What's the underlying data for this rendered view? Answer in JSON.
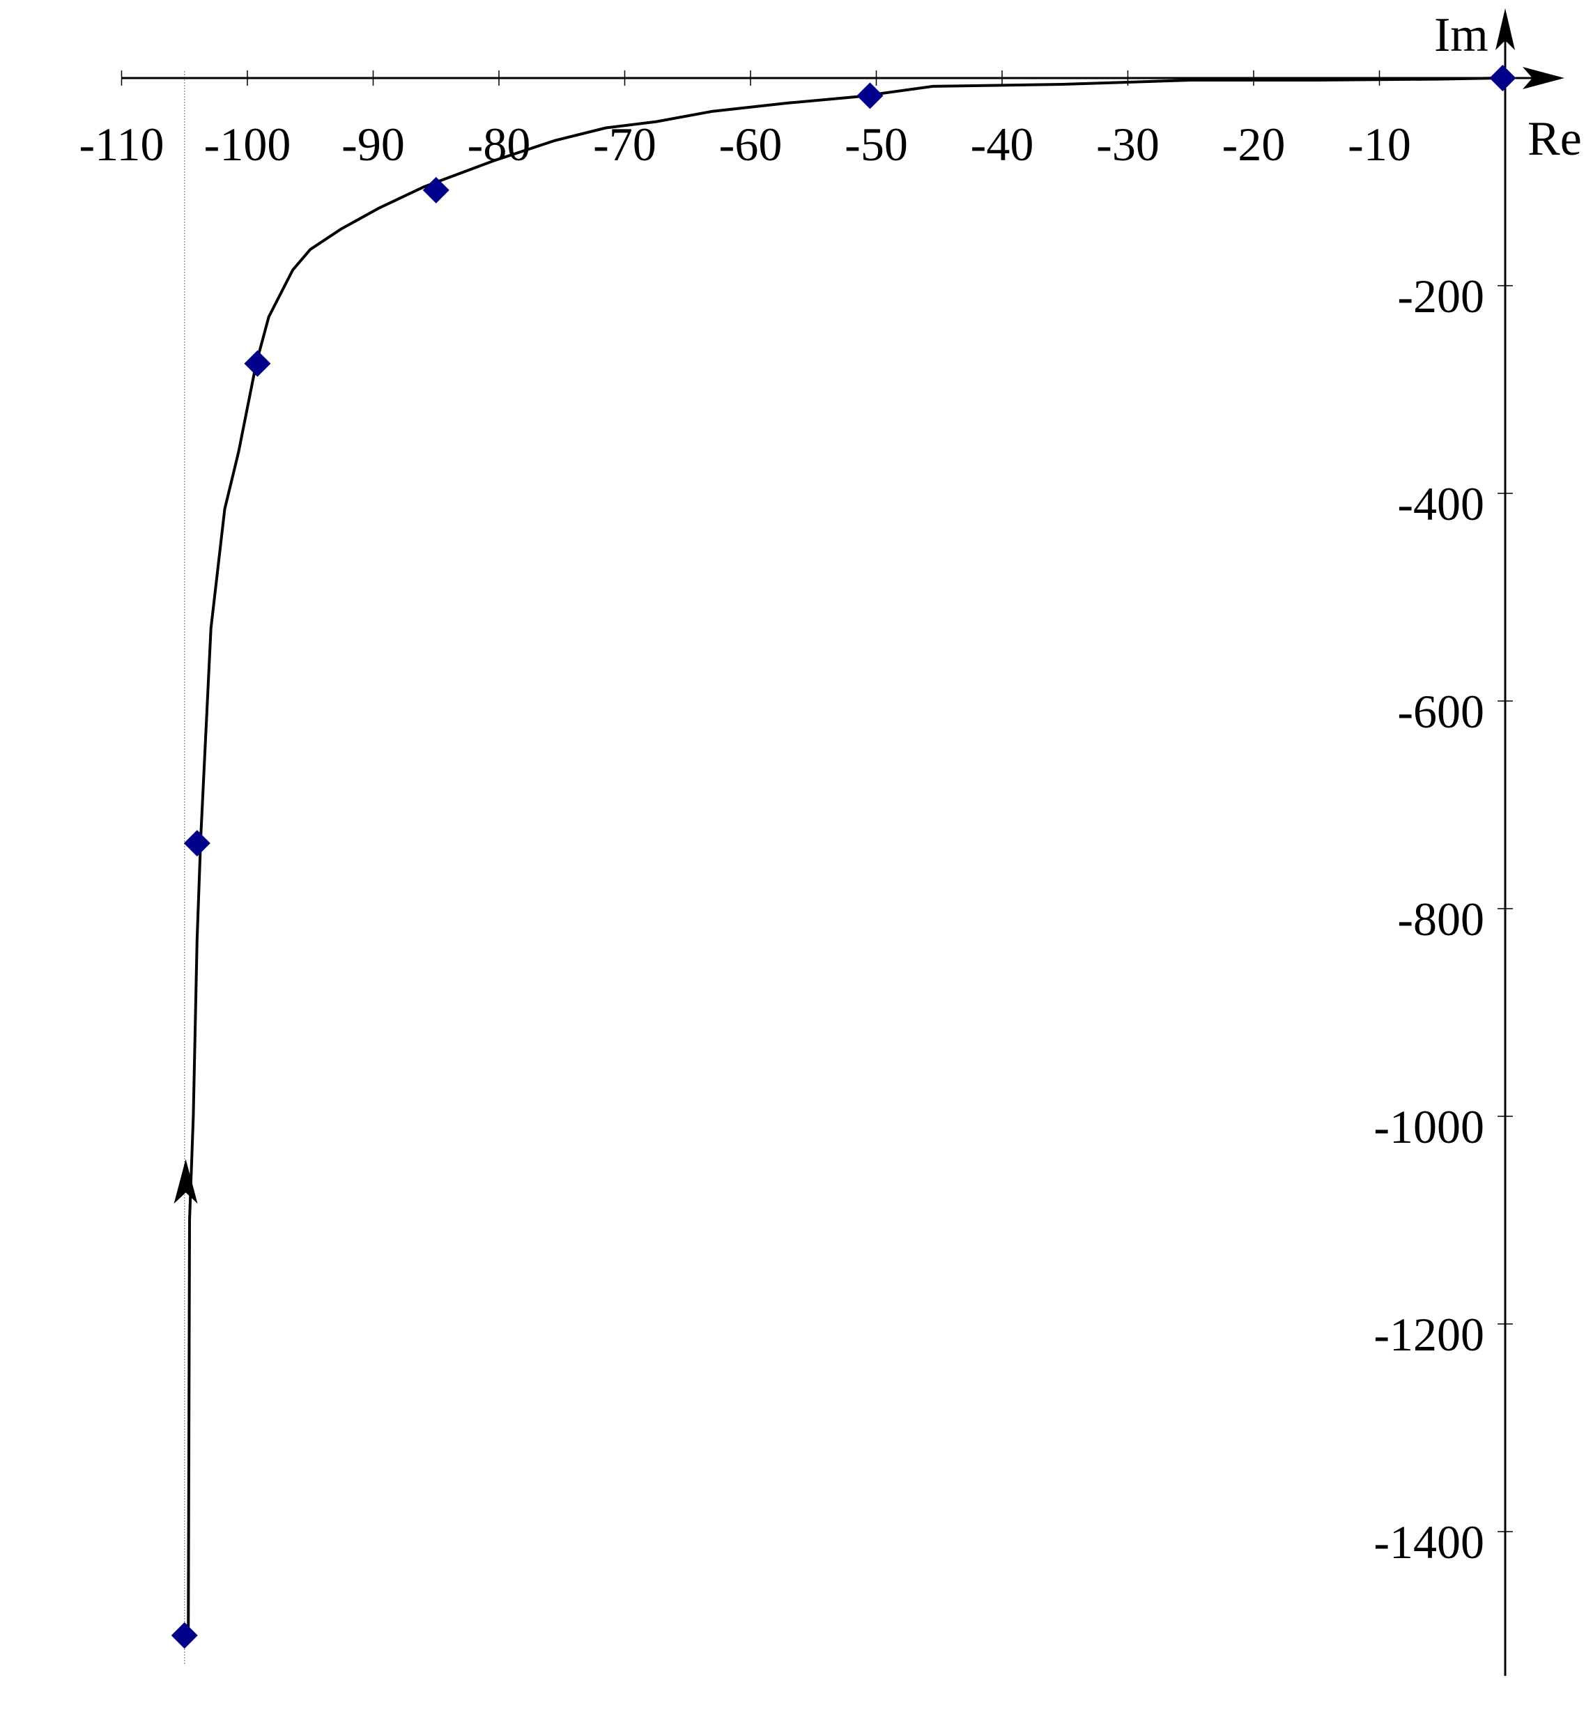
{
  "chart_data": {
    "type": "line",
    "title": "",
    "xlabel": "Re",
    "ylabel": "Im",
    "xlim": [
      -110,
      0
    ],
    "ylim": [
      -1500,
      0
    ],
    "x_ticks": [
      -110,
      -100,
      -90,
      -80,
      -70,
      -60,
      -50,
      -40,
      -30,
      -20,
      -10
    ],
    "x_tick_labels": [
      "-110",
      "-100",
      "-90",
      "-80",
      "-70",
      "-60",
      "-50",
      "-40",
      "-30",
      "-20",
      "-10"
    ],
    "y_ticks": [
      -200,
      -400,
      -600,
      -800,
      -1000,
      -1200,
      -1400
    ],
    "y_tick_labels": [
      "-200",
      "-400",
      "-600",
      "-800",
      "-1000",
      "-1200",
      "-1400"
    ],
    "reference_line_x": -105,
    "grid": false,
    "series": [
      {
        "color": "#000000",
        "x": [
          -104.7,
          -104.6,
          -104.3,
          -104.0,
          -103.7,
          -102.9,
          -101.8,
          -100.7,
          -99.3,
          -98.3,
          -96.4,
          -95.0,
          -92.5,
          -89.5,
          -86.0,
          -80.5,
          -75.5,
          -71.5,
          -67.5,
          -63.0,
          -57.0,
          -51.5,
          -45.5,
          -35.0,
          -25.0,
          -15.0,
          -5.0,
          -0.5
        ],
        "y": [
          -1500,
          -1100,
          -1000,
          -830,
          -730,
          -530,
          -415,
          -360,
          -275,
          -230,
          -185,
          -165,
          -145,
          -125,
          -105,
          -80,
          -60,
          -48,
          -42,
          -32,
          -24,
          -18,
          -8,
          -6,
          -2,
          -2,
          -1,
          0
        ]
      }
    ],
    "markers": {
      "shape": "diamond",
      "color": "#00008B",
      "x": [
        -105.0,
        -104.0,
        -99.2,
        -85.0,
        -50.5,
        -0.2
      ],
      "y": [
        -1500,
        -737,
        -275,
        -108,
        -17,
        0
      ]
    },
    "direction_arrow": {
      "x": -104.9,
      "y": -1060
    }
  }
}
